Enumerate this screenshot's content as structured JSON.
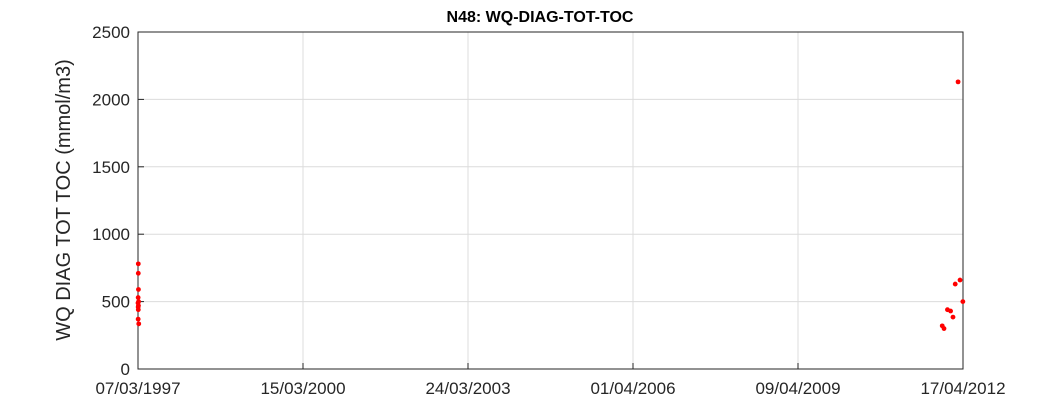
{
  "chart_data": {
    "type": "scatter",
    "title": "N48: WQ-DIAG-TOT-TOC",
    "ylabel": "WQ DIAG TOT TOC (mmol/m3)",
    "xlabel": "",
    "xlim": [
      "1997-03-07",
      "2012-04-17"
    ],
    "ylim": [
      0,
      2500
    ],
    "x_ticks": [
      {
        "date": "1997-03-07",
        "label": "07/03/1997"
      },
      {
        "date": "2000-03-15",
        "label": "15/03/2000"
      },
      {
        "date": "2003-03-24",
        "label": "24/03/2003"
      },
      {
        "date": "2006-04-01",
        "label": "01/04/2006"
      },
      {
        "date": "2009-04-09",
        "label": "09/04/2009"
      },
      {
        "date": "2012-04-17",
        "label": "17/04/2012"
      }
    ],
    "y_ticks": [
      0,
      500,
      1000,
      1500,
      2000,
      2500
    ],
    "grid": true,
    "marker_color": "#ff0000",
    "series": [
      {
        "points": [
          {
            "x": "1997-03-09",
            "y": 780
          },
          {
            "x": "1997-03-09",
            "y": 710
          },
          {
            "x": "1997-03-10",
            "y": 590
          },
          {
            "x": "1997-03-08",
            "y": 530
          },
          {
            "x": "1997-03-11",
            "y": 500
          },
          {
            "x": "1997-03-07",
            "y": 490
          },
          {
            "x": "1997-03-10",
            "y": 470
          },
          {
            "x": "1997-03-08",
            "y": 460
          },
          {
            "x": "1997-03-09",
            "y": 440
          },
          {
            "x": "1997-03-08",
            "y": 370
          },
          {
            "x": "1997-03-12",
            "y": 335
          },
          {
            "x": "2011-11-30",
            "y": 320
          },
          {
            "x": "2011-12-12",
            "y": 300
          },
          {
            "x": "2012-01-04",
            "y": 440
          },
          {
            "x": "2012-01-25",
            "y": 430
          },
          {
            "x": "2012-02-10",
            "y": 385
          },
          {
            "x": "2012-02-25",
            "y": 630
          },
          {
            "x": "2012-03-15",
            "y": 2130
          },
          {
            "x": "2012-03-28",
            "y": 660
          },
          {
            "x": "2012-04-16",
            "y": 500
          }
        ]
      }
    ]
  }
}
